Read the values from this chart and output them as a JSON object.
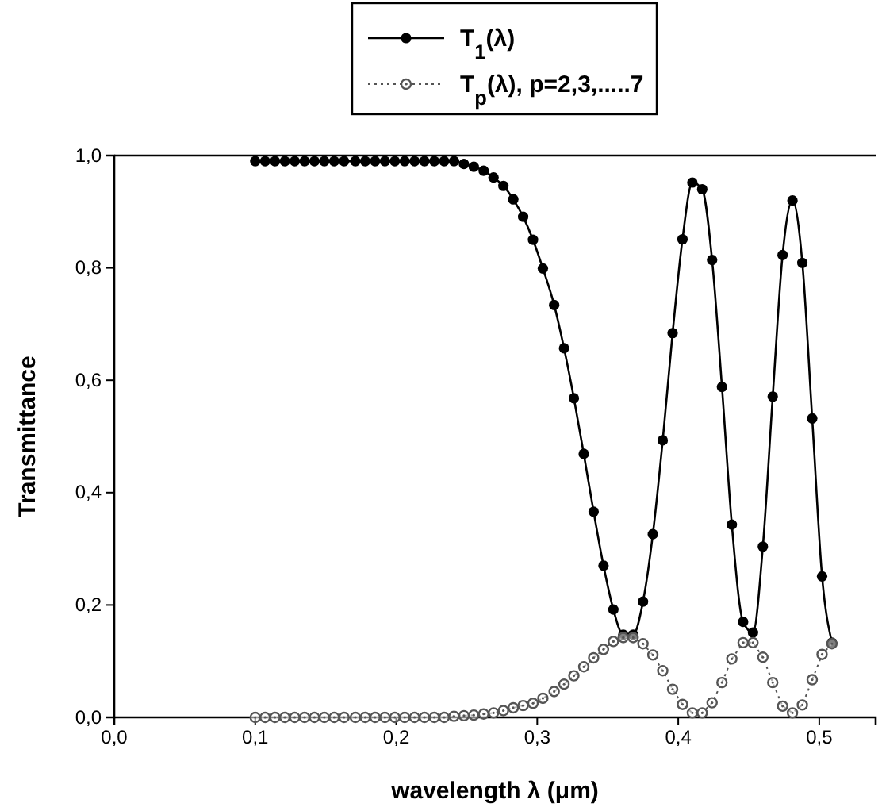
{
  "chart_data": {
    "type": "line",
    "xlabel": "wavelength λ (μm)",
    "ylabel": "Transmittance",
    "x": [
      0.1,
      0.107,
      0.114,
      0.121,
      0.128,
      0.135,
      0.142,
      0.149,
      0.156,
      0.163,
      0.171,
      0.178,
      0.185,
      0.192,
      0.199,
      0.206,
      0.213,
      0.22,
      0.227,
      0.234,
      0.241,
      0.248,
      0.255,
      0.262,
      0.269,
      0.276,
      0.283,
      0.29,
      0.297,
      0.304,
      0.312,
      0.319,
      0.326,
      0.333,
      0.34,
      0.347,
      0.354,
      0.361,
      0.368,
      0.375,
      0.382,
      0.389,
      0.396,
      0.403,
      0.41,
      0.417,
      0.424,
      0.431,
      0.438,
      0.446,
      0.453,
      0.46,
      0.467,
      0.474,
      0.481,
      0.488,
      0.495,
      0.502,
      0.509
    ],
    "series": [
      {
        "name": "T$_{1}$(λ)",
        "color": "#000000",
        "marker": "circle",
        "line_style": "solid",
        "values": [
          0.99,
          0.99,
          0.99,
          0.99,
          0.99,
          0.99,
          0.99,
          0.99,
          0.99,
          0.99,
          0.99,
          0.99,
          0.99,
          0.99,
          0.99,
          0.99,
          0.99,
          0.99,
          0.99,
          0.99,
          0.99,
          0.985,
          0.98,
          0.973,
          0.961,
          0.946,
          0.922,
          0.891,
          0.85,
          0.799,
          0.734,
          0.657,
          0.568,
          0.469,
          0.366,
          0.27,
          0.192,
          0.147,
          0.147,
          0.206,
          0.326,
          0.493,
          0.684,
          0.851,
          0.952,
          0.94,
          0.814,
          0.588,
          0.343,
          0.17,
          0.151,
          0.304,
          0.571,
          0.823,
          0.92,
          0.809,
          0.532,
          0.251,
          0.133
        ]
      },
      {
        "name": "T$_{p}$(λ), p=2,3,.....7",
        "color": "#555555",
        "marker": "circle-dot",
        "line_style": "dotted",
        "values": [
          0,
          0,
          0,
          0,
          0,
          0,
          0,
          0,
          0,
          0,
          0,
          0,
          0,
          0,
          0,
          0,
          0,
          0,
          0,
          0,
          0.002,
          0.003,
          0.004,
          0.006,
          0.008,
          0.012,
          0.017,
          0.021,
          0.025,
          0.034,
          0.046,
          0.059,
          0.074,
          0.09,
          0.106,
          0.121,
          0.135,
          0.142,
          0.142,
          0.131,
          0.111,
          0.083,
          0.05,
          0.023,
          0.008,
          0.008,
          0.026,
          0.062,
          0.104,
          0.133,
          0.133,
          0.107,
          0.062,
          0.02,
          0.008,
          0.022,
          0.067,
          0.112,
          0.131
        ]
      }
    ],
    "xlim": [
      0,
      0.54
    ],
    "ylim": [
      0,
      1
    ],
    "xticks": [
      {
        "value": 0,
        "label": "0,0"
      },
      {
        "value": 0.1,
        "label": "0,1"
      },
      {
        "value": 0.2,
        "label": "0,2"
      },
      {
        "value": 0.3,
        "label": "0,3"
      },
      {
        "value": 0.4,
        "label": "0,4"
      },
      {
        "value": 0.5,
        "label": "0,5"
      }
    ],
    "yticks": [
      {
        "value": 0,
        "label": "0,0"
      },
      {
        "value": 0.2,
        "label": "0,2"
      },
      {
        "value": 0.4,
        "label": "0,4"
      },
      {
        "value": 0.6,
        "label": "0,6"
      },
      {
        "value": 0.8,
        "label": "0,8"
      },
      {
        "value": 1,
        "label": "1,0"
      }
    ],
    "legend": "top",
    "grid": false
  }
}
